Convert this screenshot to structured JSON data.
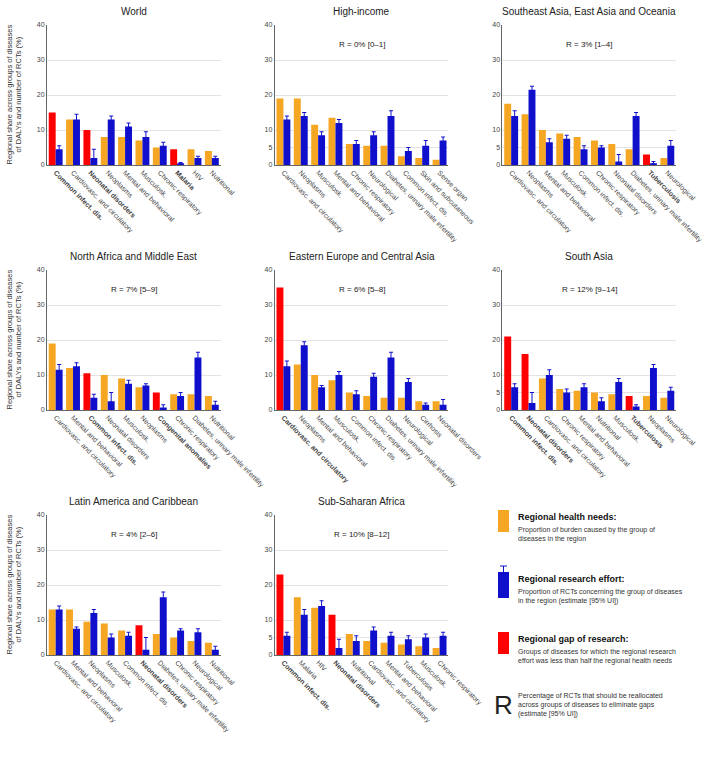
{
  "chart_data": [
    {
      "type": "bar",
      "title": "World",
      "y_label": "Regional share across groups of diseases\nof DALYs and number of RCTs (%)",
      "categories": [
        "Common infect. dis.",
        "Cardiovasc. and circulatory",
        "Neonatal disorders",
        "Neoplasms",
        "Mental and behavioral",
        "Musculosk.",
        "Chronic respiratory",
        "Malaria",
        "HIV",
        "Nutritional"
      ],
      "series": [
        {
          "color": "#f5a623",
          "colors": [
            "#ff0000",
            "#f5a623",
            "#ff0000",
            "#f5a623",
            "#f5a623",
            "#f5a623",
            "#f5a623",
            "#ff0000",
            "#f5a623",
            "#f5a623"
          ],
          "values": [
            15,
            13,
            10,
            8,
            8,
            7,
            5,
            4.5,
            4.5,
            4
          ]
        },
        {
          "color": "#1010cc",
          "values": [
            4.5,
            13,
            2,
            13,
            11,
            8,
            5.5,
            0.5,
            2,
            2
          ],
          "error": [
            [
              3.5,
              5.5
            ],
            [
              11.5,
              14.5
            ],
            [
              0.5,
              4.5
            ],
            [
              12,
              14
            ],
            [
              10,
              12
            ],
            [
              7,
              9.5
            ],
            [
              5,
              6.5
            ],
            [
              0.3,
              0.7
            ],
            [
              1.5,
              2.5
            ],
            [
              1,
              2.5
            ]
          ]
        }
      ],
      "ylim": [
        0,
        40
      ],
      "yticks": [
        0,
        10,
        20,
        30,
        40
      ],
      "grid": true
    },
    {
      "type": "bar",
      "title": "High-income",
      "annotation": "R = 0% [0–1]",
      "categories": [
        "Cardiovasc. and circulatory",
        "Neoplasms",
        "Musculosk.",
        "Mental and behavioral",
        "Chronic respiratory",
        "Neurological",
        "Diabetes, urinary male infertility",
        "Common infect. dis.",
        "Skin and subcutaneous",
        "Sense organ"
      ],
      "series": [
        {
          "color": "#f5a623",
          "colors": [
            "#f5a623",
            "#f5a623",
            "#f5a623",
            "#f5a623",
            "#f5a623",
            "#f5a623",
            "#f5a623",
            "#f5a623",
            "#f5a623",
            "#f5a623"
          ],
          "values": [
            19,
            19,
            11.5,
            13.5,
            6,
            5.5,
            5.5,
            2.5,
            2,
            1.5
          ]
        },
        {
          "color": "#1010cc",
          "values": [
            13,
            14,
            8.5,
            12,
            6,
            8.5,
            14,
            4,
            5.5,
            7
          ],
          "error": [
            [
              11.5,
              14
            ],
            [
              13,
              15
            ],
            [
              7.5,
              9.5
            ],
            [
              11,
              13
            ],
            [
              5.5,
              7
            ],
            [
              7.5,
              9.5
            ],
            [
              13,
              15.5
            ],
            [
              3,
              5
            ],
            [
              4,
              7
            ],
            [
              6,
              8
            ]
          ]
        }
      ],
      "ylim": [
        0,
        40
      ],
      "yticks": [
        0,
        5,
        10,
        20,
        30,
        40
      ],
      "grid": true
    },
    {
      "type": "bar",
      "title": "Southeast Asia, East Asia and Oceania",
      "annotation": "R = 3% [1–4]",
      "categories": [
        "Cardiovasc. and circulatory",
        "Neoplasms",
        "Mental and behavioral",
        "Musculosk.",
        "Common infect. dis.",
        "Chronic respiratory",
        "Neonatal disorders",
        "Diabetes, urinary male infertility",
        "Tuberculosis",
        "Neurological"
      ],
      "series": [
        {
          "color": "#f5a623",
          "colors": [
            "#f5a623",
            "#f5a623",
            "#f5a623",
            "#f5a623",
            "#f5a623",
            "#f5a623",
            "#f5a623",
            "#f5a623",
            "#ff0000",
            "#f5a623"
          ],
          "values": [
            17.5,
            14.5,
            10,
            9,
            8,
            7,
            6,
            4.5,
            3,
            2
          ]
        },
        {
          "color": "#1010cc",
          "values": [
            14,
            21.5,
            6.5,
            7.5,
            4.5,
            5,
            1,
            14,
            0.5,
            5.5
          ],
          "error": [
            [
              12.5,
              15.5
            ],
            [
              20.5,
              22.5
            ],
            [
              5.5,
              7.5
            ],
            [
              6.5,
              8.5
            ],
            [
              3.5,
              5.5
            ],
            [
              4.5,
              5.5
            ],
            [
              0.5,
              3
            ],
            [
              13,
              15
            ],
            [
              0.3,
              1
            ],
            [
              4.5,
              7
            ]
          ]
        }
      ],
      "ylim": [
        0,
        40
      ],
      "yticks": [
        0,
        5,
        10,
        20,
        30,
        40
      ],
      "grid": true
    },
    {
      "type": "bar",
      "title": "North Africa and Middle East",
      "annotation": "R = 7% [5–9]",
      "y_label": "Regional share across groups of diseases\nof DALYs and number of RCTs (%)",
      "categories": [
        "Cardiovasc. and circulatory",
        "Mental and behavioral",
        "Common infect. dis.",
        "Neonatal disorders",
        "Musculosk.",
        "Neoplasms",
        "Congenital anomalies",
        "Chronic respiratory",
        "Diabetes, urinary male infertility",
        "Nutritional"
      ],
      "series": [
        {
          "color": "#f5a623",
          "colors": [
            "#f5a623",
            "#f5a623",
            "#ff0000",
            "#f5a623",
            "#f5a623",
            "#f5a623",
            "#ff0000",
            "#f5a623",
            "#f5a623",
            "#f5a623"
          ],
          "values": [
            19,
            12,
            10.5,
            10,
            9,
            6.5,
            5,
            4.5,
            4.5,
            4
          ]
        },
        {
          "color": "#1010cc",
          "values": [
            11.5,
            12.5,
            3.5,
            2.5,
            7.5,
            7,
            0.7,
            4,
            15,
            1.5
          ],
          "error": [
            [
              10,
              13
            ],
            [
              11.5,
              13.5
            ],
            [
              2.5,
              4.5
            ],
            [
              0.5,
              5
            ],
            [
              6.5,
              8.5
            ],
            [
              6,
              7.5
            ],
            [
              0.3,
              1.5
            ],
            [
              3.5,
              5
            ],
            [
              13.5,
              16.5
            ],
            [
              1,
              2.5
            ]
          ]
        }
      ],
      "ylim": [
        0,
        40
      ],
      "yticks": [
        0,
        10,
        20,
        30,
        40
      ],
      "grid": true
    },
    {
      "type": "bar",
      "title": "Eastern Europe and Central Asia",
      "annotation": "R = 6% [5–8]",
      "categories": [
        "Cardiovasc. and circulatory",
        "Neoplasms",
        "Mental and behavioral",
        "Musculosk.",
        "Common infect. dis.",
        "Chronic respiratory",
        "Diabetes, urinary male infertility",
        "Neurological",
        "Cirrhosis",
        "Neonatal disorders"
      ],
      "series": [
        {
          "color": "#f5a623",
          "colors": [
            "#ff0000",
            "#f5a623",
            "#f5a623",
            "#f5a623",
            "#f5a623",
            "#f5a623",
            "#f5a623",
            "#f5a623",
            "#f5a623",
            "#f5a623"
          ],
          "values": [
            35,
            13,
            10,
            8.5,
            5,
            4,
            3.5,
            3.5,
            2.5,
            2.5
          ]
        },
        {
          "color": "#1010cc",
          "values": [
            12.5,
            18.5,
            6.5,
            10,
            4.5,
            9.5,
            15,
            8,
            1.5,
            1.5
          ],
          "error": [
            [
              11.5,
              14
            ],
            [
              17,
              19.5
            ],
            [
              5.5,
              7
            ],
            [
              9,
              11
            ],
            [
              3.5,
              5.5
            ],
            [
              8.5,
              10.5
            ],
            [
              13.5,
              16.5
            ],
            [
              7,
              9
            ],
            [
              1,
              2
            ],
            [
              0.5,
              3
            ]
          ]
        }
      ],
      "ylim": [
        0,
        40
      ],
      "yticks": [
        0,
        10,
        20,
        30,
        40
      ],
      "grid": true
    },
    {
      "type": "bar",
      "title": "South Asia",
      "annotation": "R = 12% [9–14]",
      "categories": [
        "Common infect. dis.",
        "Neonatal disorders",
        "Cardiovasc. and circulatory",
        "Chronic respiratory",
        "Mental and behavioral",
        "Nutritional",
        "Musculosk.",
        "Tuberculosis",
        "Neoplasms",
        "Neurological"
      ],
      "series": [
        {
          "color": "#f5a623",
          "colors": [
            "#ff0000",
            "#ff0000",
            "#f5a623",
            "#f5a623",
            "#f5a623",
            "#f5a623",
            "#f5a623",
            "#ff0000",
            "#f5a623",
            "#f5a623"
          ],
          "values": [
            21,
            16,
            9,
            6,
            5.5,
            5,
            4.5,
            4,
            4,
            3.5
          ]
        },
        {
          "color": "#1010cc",
          "values": [
            6.5,
            2,
            10,
            5,
            6.5,
            2.5,
            8,
            1,
            12,
            5.5
          ],
          "error": [
            [
              5.5,
              7.5
            ],
            [
              0.5,
              5
            ],
            [
              8.5,
              11.5
            ],
            [
              4.5,
              6
            ],
            [
              5.5,
              7.5
            ],
            [
              1.5,
              3.5
            ],
            [
              7,
              9
            ],
            [
              0.5,
              1.5
            ],
            [
              11,
              13
            ],
            [
              4.5,
              6.5
            ]
          ]
        }
      ],
      "ylim": [
        0,
        40
      ],
      "yticks": [
        0,
        5,
        10,
        20,
        30,
        40
      ],
      "grid": true
    },
    {
      "type": "bar",
      "title": "Latin America and Caribbean",
      "annotation": "R = 4% [2–6]",
      "y_label": "Regional share across groups of diseases\nof DALYs and number of RCTs (%)",
      "categories": [
        "Cardiovasc. and circulatory",
        "Mental and behavioral",
        "Neoplasms",
        "Musculosk.",
        "Common infect. dis.",
        "Neonatal disorders",
        "Diabetes, urinary male infertility",
        "Chronic respiratory",
        "Neurological",
        "Nutritional"
      ],
      "series": [
        {
          "color": "#f5a623",
          "colors": [
            "#f5a623",
            "#f5a623",
            "#f5a623",
            "#f5a623",
            "#f5a623",
            "#ff0000",
            "#f5a623",
            "#f5a623",
            "#f5a623",
            "#f5a623"
          ],
          "values": [
            13,
            13,
            9.5,
            9,
            7,
            8.5,
            6,
            5,
            4,
            3.5
          ]
        },
        {
          "color": "#1010cc",
          "values": [
            13,
            7.5,
            12,
            5,
            5.5,
            1.5,
            16.5,
            7,
            6.5,
            1.5
          ],
          "error": [
            [
              12,
              14
            ],
            [
              6.5,
              8
            ],
            [
              11,
              13
            ],
            [
              4.5,
              6
            ],
            [
              4.5,
              6.5
            ],
            [
              0.5,
              5
            ],
            [
              15,
              18
            ],
            [
              6,
              7.5
            ],
            [
              5.5,
              7.5
            ],
            [
              1,
              2.5
            ]
          ]
        }
      ],
      "ylim": [
        0,
        40
      ],
      "yticks": [
        0,
        10,
        20,
        30,
        40
      ],
      "grid": true
    },
    {
      "type": "bar",
      "title": "Sub-Saharan Africa",
      "annotation": "R = 10% [8–12]",
      "categories": [
        "Common infect. dis.",
        "Malaria",
        "HIV",
        "Neonatal disorders",
        "Nutritional",
        "Cardiovasc. and circulatory",
        "Mental and behavioral",
        "Tuberculosis",
        "Musculosk.",
        "Chronic respiratory"
      ],
      "series": [
        {
          "color": "#f5a623",
          "colors": [
            "#ff0000",
            "#f5a623",
            "#f5a623",
            "#ff0000",
            "#f5a623",
            "#f5a623",
            "#f5a623",
            "#f5a623",
            "#f5a623",
            "#f5a623"
          ],
          "values": [
            23,
            16.5,
            13.5,
            11.5,
            6,
            4,
            3.5,
            3,
            2.5,
            2
          ]
        },
        {
          "color": "#1010cc",
          "values": [
            5.5,
            11.5,
            14,
            2,
            4,
            7,
            5.5,
            4.5,
            5,
            5.5
          ],
          "error": [
            [
              4.5,
              6.5
            ],
            [
              10,
              13
            ],
            [
              12.5,
              15.5
            ],
            [
              0.5,
              4.5
            ],
            [
              3,
              5.5
            ],
            [
              6,
              8
            ],
            [
              4.5,
              6.5
            ],
            [
              3.5,
              5.5
            ],
            [
              4,
              6
            ],
            [
              4.5,
              6.5
            ]
          ]
        }
      ],
      "ylim": [
        0,
        40
      ],
      "yticks": [
        0,
        5,
        10,
        20,
        30,
        40
      ],
      "grid": true
    }
  ],
  "key": {
    "needs": {
      "title": "Regional health needs:",
      "text": "Proportion of burden caused by the group of\ndiseases in the region",
      "color": "#f5a623"
    },
    "research": {
      "title": "Regional research effort:",
      "text": "Proportion of RCTs concerning the group of diseases\nin the region (estimate [95% UI])",
      "color": "#1010cc"
    },
    "gap": {
      "title": "Regional gap of research:",
      "text": "Groups of diseases for which the regional research\neffort was less than half the regional health needs",
      "color": "#ff0000"
    },
    "r": {
      "symbol": "R",
      "text": "Percentage of RCTs that should be reallocated\nacross groups of diseases to eliminate gaps\n(estimate [95% UI])"
    }
  }
}
